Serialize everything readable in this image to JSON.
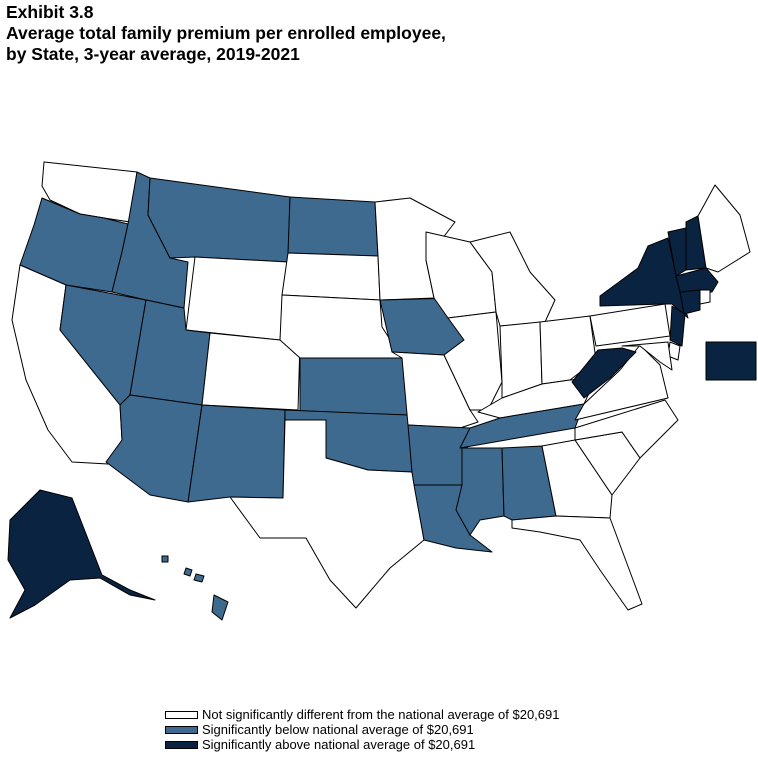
{
  "header": {
    "exhibit": "Exhibit 3.8",
    "title_line1": "Average total family premium per enrolled employee,",
    "title_line2": "by State, 3-year average, 2019-2021"
  },
  "colors": {
    "not_significant": "#ffffff",
    "below": "#3e6a8f",
    "above": "#0a2340"
  },
  "legend": {
    "items": [
      {
        "key": "not_significant",
        "label": "Not significantly different from the national average of  $20,691"
      },
      {
        "key": "below",
        "label": "Significantly below national average of  $20,691"
      },
      {
        "key": "above",
        "label": "Significantly above national average of  $20,691"
      }
    ]
  },
  "map_data": {
    "type": "choropleth",
    "national_average": "$20,691",
    "categories": {
      "below": [
        "OR",
        "ID",
        "MT",
        "ND",
        "NV",
        "UT",
        "AZ",
        "NM",
        "KS",
        "OK",
        "AR",
        "LA",
        "MS",
        "AL",
        "TN",
        "IA",
        "HI"
      ],
      "above": [
        "AK",
        "NY",
        "VT",
        "NH",
        "MA",
        "CT",
        "NJ",
        "WV",
        "DC"
      ],
      "not_significant": [
        "WA",
        "CA",
        "WY",
        "CO",
        "TX",
        "SD",
        "NE",
        "MN",
        "WI",
        "MI",
        "IL",
        "IN",
        "OH",
        "KY",
        "MO",
        "PA",
        "VA",
        "NC",
        "SC",
        "GA",
        "FL",
        "ME",
        "RI",
        "DE",
        "MD"
      ]
    }
  }
}
